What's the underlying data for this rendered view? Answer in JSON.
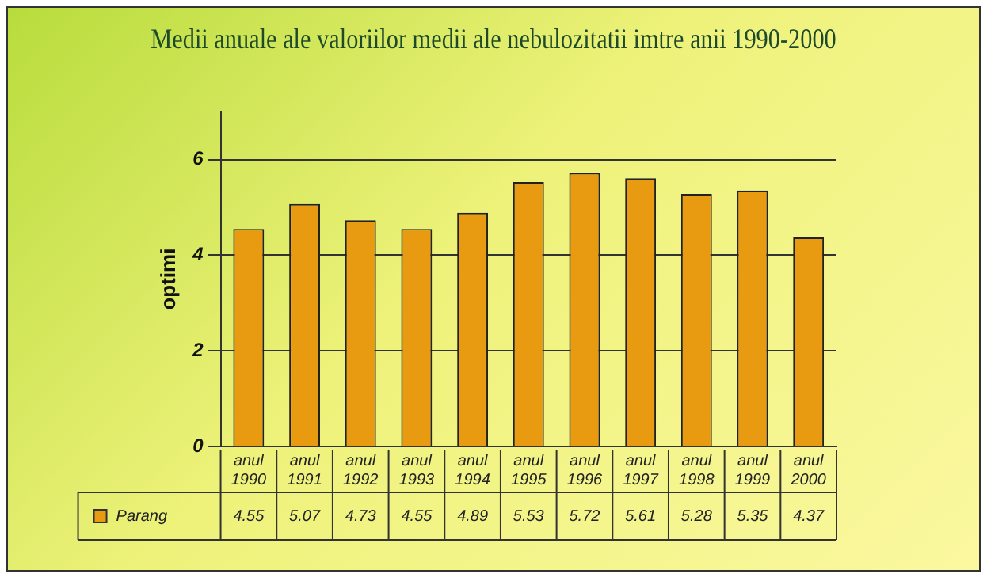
{
  "chart_data": {
    "type": "bar",
    "title": "Medii anuale ale valoriilor medii ale nebulozitatii imtre anii 1990-2000",
    "ylabel": "optimi",
    "categories": [
      "anul 1990",
      "anul 1991",
      "anul 1992",
      "anul 1993",
      "anul 1994",
      "anul 1995",
      "anul 1996",
      "anul 1997",
      "anul 1998",
      "anul 1999",
      "anul 2000"
    ],
    "series": [
      {
        "name": "Parang",
        "color": "#e89a10",
        "values": [
          4.55,
          5.07,
          4.73,
          4.55,
          4.89,
          5.53,
          5.72,
          5.61,
          5.28,
          5.35,
          4.37
        ]
      }
    ],
    "ylim": [
      0,
      7
    ],
    "yticks": [
      0,
      2,
      4,
      6
    ],
    "grid": "y",
    "legend": "bottom left",
    "data_labels": true
  }
}
